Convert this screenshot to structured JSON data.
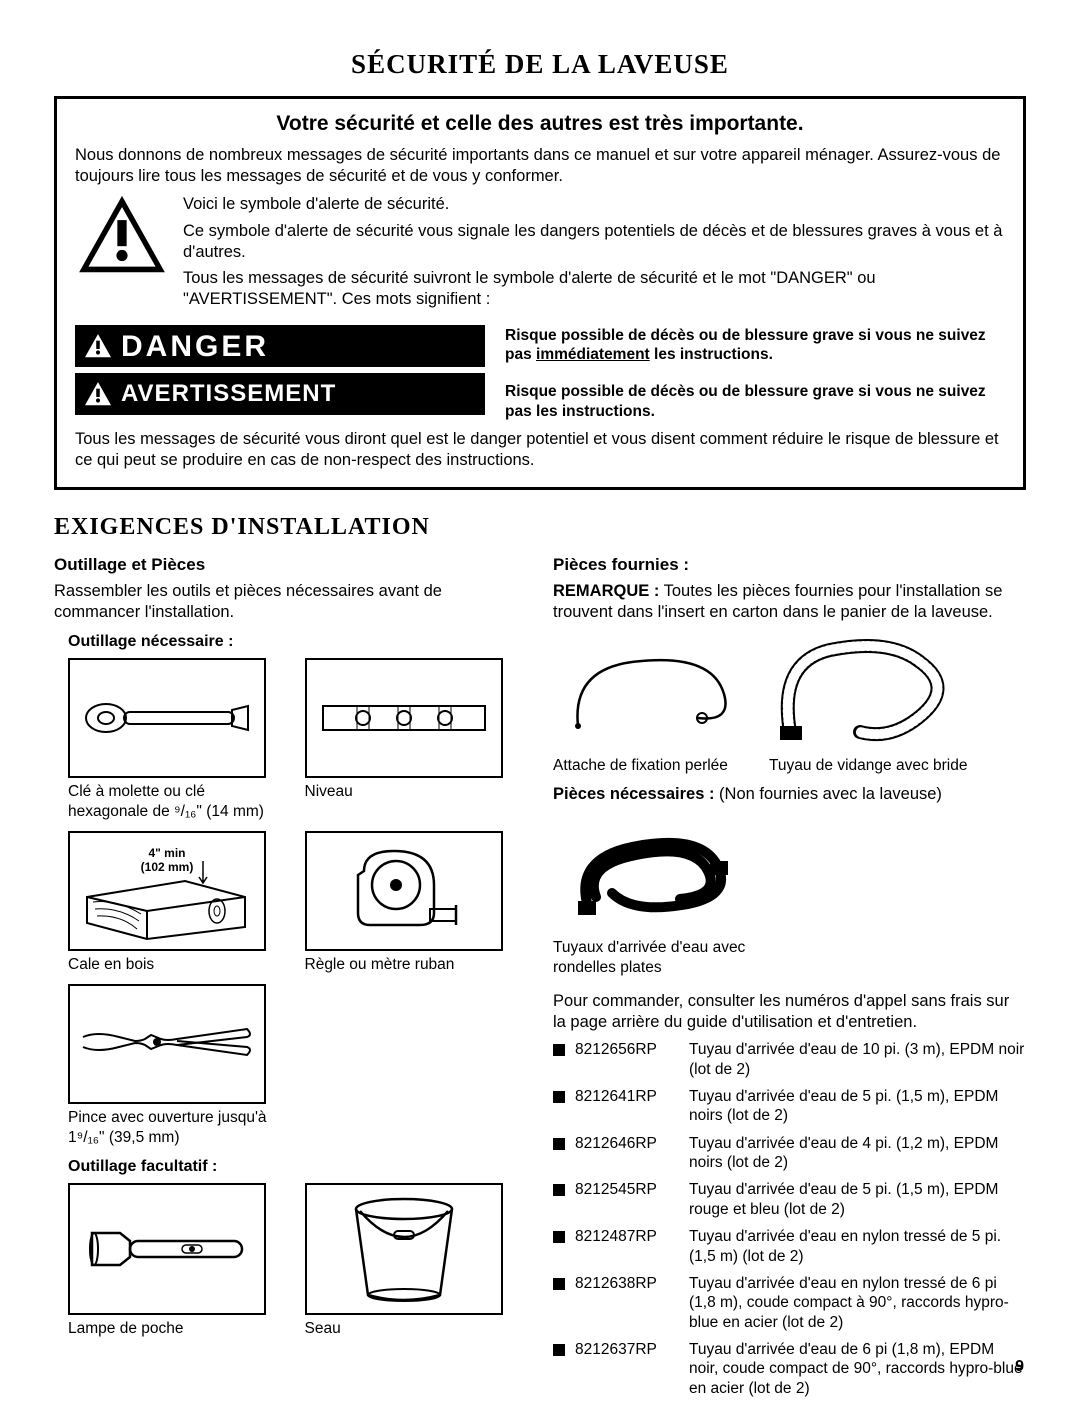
{
  "title": "SÉCURITÉ DE LA LAVEUSE",
  "safety": {
    "subtitle": "Votre sécurité et celle des autres est très importante.",
    "intro": "Nous donnons de nombreux messages de sécurité importants dans ce manuel et sur votre appareil ménager. Assurez-vous de toujours lire tous les messages de sécurité et de vous y conformer.",
    "alert1": "Voici le symbole d'alerte de sécurité.",
    "alert2": "Ce symbole d'alerte de sécurité vous signale les dangers potentiels de décès et de blessures graves à vous et à d'autres.",
    "alert3": "Tous les messages de sécurité suivront le symbole d'alerte de sécurité et le mot \"DANGER\" ou \"AVERTISSEMENT\". Ces mots signifient :",
    "danger_label": "DANGER",
    "warn_label": "AVERTISSEMENT",
    "danger_desc_a": "Risque possible de décès ou de blessure grave si vous ne suivez pas ",
    "danger_desc_b": "immédiatement",
    "danger_desc_c": " les instructions.",
    "warn_desc": "Risque possible de décès ou de blessure grave si vous ne suivez pas les instructions.",
    "footer": "Tous les messages de sécurité vous diront quel est le danger potentiel et vous disent comment réduire le risque de blessure et ce qui peut se produire en cas de non-respect des instructions."
  },
  "install": {
    "title": "EXIGENCES D'INSTALLATION",
    "tools_heading": "Outillage et Pièces",
    "tools_intro": "Rassembler les outils et pièces nécessaires avant de commancer l'installation.",
    "tools_req": "Outillage nécessaire :",
    "tool_wrench": "Clé à molette ou clé hexagonale de ⁹/₁₆\" (14 mm)",
    "tool_level": "Niveau",
    "tool_block_dim": "4\" min (102 mm)",
    "tool_block": "Cale en bois",
    "tool_tape": "Règle ou mètre ruban",
    "tool_pliers": "Pince avec ouverture jusqu'à 1⁹/₁₆\" (39,5 mm)",
    "tools_opt": "Outillage facultatif :",
    "tool_flash": "Lampe de poche",
    "tool_bucket": "Seau",
    "parts_heading": "Pièces fournies :",
    "parts_note_b": "REMARQUE :",
    "parts_note": " Toutes les pièces fournies pour l'installation se trouvent dans l'insert en carton dans le panier de la laveuse.",
    "part_tie": "Attache de fixation perlée",
    "part_hose": "Tuyau de vidange avec bride",
    "parts_needed_b": "Pièces nécessaires :",
    "parts_needed": " (Non fournies avec la laveuse)",
    "part_inlet": "Tuyaux d'arrivée d'eau avec rondelles plates",
    "order_text": "Pour commander, consulter les numéros d'appel sans frais sur la page arrière du guide d'utilisation et d'entretien.",
    "items": [
      {
        "code": "8212656RP",
        "desc": "Tuyau d'arrivée d'eau de 10 pi. (3 m), EPDM noir (lot de 2)"
      },
      {
        "code": "8212641RP",
        "desc": "Tuyau d'arrivée d'eau de 5 pi. (1,5 m), EPDM noirs (lot de 2)"
      },
      {
        "code": "8212646RP",
        "desc": "Tuyau d'arrivée d'eau de 4 pi. (1,2 m), EPDM noirs (lot de 2)"
      },
      {
        "code": "8212545RP",
        "desc": "Tuyau d'arrivée d'eau de 5 pi. (1,5 m), EPDM rouge et bleu (lot de 2)"
      },
      {
        "code": "8212487RP",
        "desc": "Tuyau d'arrivée d'eau en nylon tressé de 5 pi. (1,5 m) (lot de 2)"
      },
      {
        "code": "8212638RP",
        "desc": "Tuyau d'arrivée d'eau en nylon tressé de 6 pi (1,8 m), coude compact à 90°, raccords hypro-blue en acier (lot de 2)"
      },
      {
        "code": "8212637RP",
        "desc": "Tuyau d'arrivée d'eau de 6 pi (1,8 m), EPDM noir, coude compact de 90°, raccords hypro-blue en acier (lot de 2)"
      }
    ]
  },
  "page": "9"
}
